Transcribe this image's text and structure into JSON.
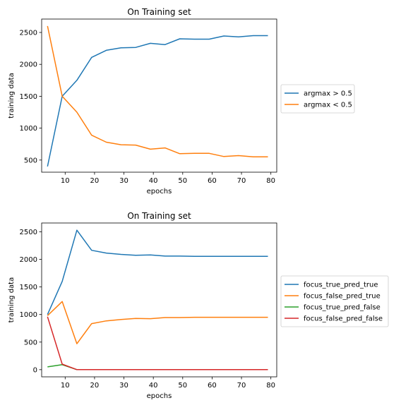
{
  "chart_data": [
    {
      "type": "line",
      "title": "On Training set",
      "xlabel": "epochs",
      "ylabel": "training data",
      "xlim": [
        2,
        82
      ],
      "ylim": [
        310,
        2710
      ],
      "xticks": [
        10,
        20,
        30,
        40,
        50,
        60,
        70,
        80
      ],
      "yticks": [
        500,
        1000,
        1500,
        2000,
        2500
      ],
      "grid": false,
      "legend_position": "outside-right",
      "x": [
        4,
        9,
        14,
        19,
        24,
        29,
        34,
        39,
        44,
        49,
        54,
        59,
        64,
        69,
        74,
        79
      ],
      "series": [
        {
          "name": "argmax > 0.5",
          "color": "#1f77b4",
          "values": [
            400,
            1500,
            1750,
            2110,
            2220,
            2260,
            2265,
            2330,
            2310,
            2400,
            2395,
            2395,
            2445,
            2430,
            2450,
            2450
          ]
        },
        {
          "name": "argmax < 0.5",
          "color": "#ff7f0e",
          "values": [
            2600,
            1500,
            1250,
            890,
            780,
            740,
            735,
            670,
            690,
            600,
            605,
            605,
            555,
            570,
            550,
            550
          ]
        }
      ]
    },
    {
      "type": "line",
      "title": "On Training set",
      "xlabel": "epochs",
      "ylabel": "training data",
      "xlim": [
        2,
        82
      ],
      "ylim": [
        -130,
        2660
      ],
      "xticks": [
        10,
        20,
        30,
        40,
        50,
        60,
        70,
        80
      ],
      "yticks": [
        0,
        500,
        1000,
        1500,
        2000,
        2500
      ],
      "grid": false,
      "legend_position": "outside-right",
      "x": [
        4,
        9,
        14,
        19,
        24,
        29,
        34,
        39,
        44,
        49,
        54,
        59,
        64,
        69,
        74,
        79
      ],
      "series": [
        {
          "name": "focus_true_pred_true",
          "color": "#1f77b4",
          "values": [
            1000,
            1600,
            2530,
            2165,
            2115,
            2090,
            2075,
            2080,
            2060,
            2060,
            2055,
            2055,
            2055,
            2055,
            2055,
            2055
          ]
        },
        {
          "name": "focus_false_pred_true",
          "color": "#ff7f0e",
          "values": [
            980,
            1235,
            470,
            835,
            885,
            910,
            930,
            925,
            945,
            945,
            950,
            950,
            950,
            950,
            950,
            950
          ]
        },
        {
          "name": "focus_true_pred_false",
          "color": "#2ca02c",
          "values": [
            50,
            90,
            0,
            0,
            0,
            0,
            0,
            0,
            0,
            0,
            0,
            0,
            0,
            0,
            0,
            0
          ]
        },
        {
          "name": "focus_false_pred_false",
          "color": "#d62728",
          "values": [
            960,
            100,
            0,
            0,
            0,
            0,
            0,
            0,
            0,
            0,
            0,
            0,
            0,
            0,
            0,
            0
          ]
        }
      ]
    }
  ]
}
